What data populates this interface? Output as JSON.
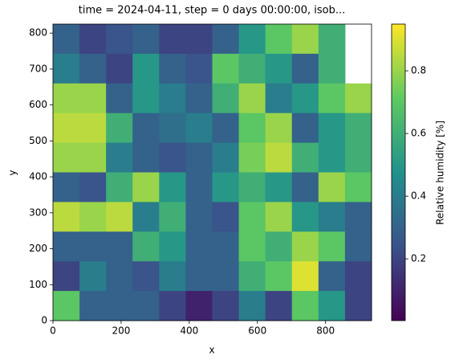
{
  "chart_data": {
    "type": "heatmap",
    "title": "time = 2024-04-11, step = 0 days 00:00:00, isob...",
    "xlabel": "x",
    "ylabel": "y",
    "colorbar_label": "Relative humidity [%]",
    "xlim": [
      0,
      935
    ],
    "ylim": [
      0,
      825
    ],
    "xticks": [
      0,
      200,
      400,
      600,
      800
    ],
    "yticks": [
      0,
      100,
      200,
      300,
      400,
      500,
      600,
      700,
      800
    ],
    "clim": [
      0.003,
      0.949
    ],
    "cticks": [
      0.2,
      0.4,
      0.6,
      0.8
    ],
    "colormap": [
      "#440154",
      "#3b528b",
      "#21918c",
      "#5ec962",
      "#fde725"
    ],
    "z": [
      [
        0.3,
        0.2,
        0.25,
        0.3,
        0.2,
        0.2,
        0.3,
        0.5,
        0.7,
        0.8,
        0.6,
        null
      ],
      [
        0.4,
        0.3,
        0.2,
        0.5,
        0.3,
        0.25,
        0.7,
        0.6,
        0.5,
        0.3,
        0.6,
        null
      ],
      [
        0.8,
        0.8,
        0.3,
        0.5,
        0.4,
        0.3,
        0.6,
        0.8,
        0.4,
        0.5,
        0.7,
        0.8
      ],
      [
        0.85,
        0.85,
        0.6,
        0.3,
        0.35,
        0.4,
        0.3,
        0.7,
        0.8,
        0.3,
        0.5,
        0.6
      ],
      [
        0.8,
        0.8,
        0.4,
        0.3,
        0.25,
        0.3,
        0.4,
        0.75,
        0.85,
        0.6,
        0.5,
        0.6
      ],
      [
        0.3,
        0.25,
        0.6,
        0.8,
        0.5,
        0.3,
        0.5,
        0.6,
        0.5,
        0.3,
        0.8,
        0.7
      ],
      [
        0.85,
        0.8,
        0.85,
        0.4,
        0.6,
        0.3,
        0.25,
        0.7,
        0.8,
        0.5,
        0.4,
        0.3
      ],
      [
        0.3,
        0.3,
        0.3,
        0.6,
        0.5,
        0.3,
        0.3,
        0.7,
        0.6,
        0.8,
        0.7,
        0.3
      ],
      [
        0.2,
        0.4,
        0.3,
        0.25,
        0.4,
        0.3,
        0.3,
        0.6,
        0.7,
        0.9,
        0.3,
        0.2
      ],
      [
        0.7,
        0.3,
        0.3,
        0.3,
        0.2,
        0.1,
        0.2,
        0.4,
        0.2,
        0.7,
        0.5,
        0.2
      ]
    ]
  }
}
